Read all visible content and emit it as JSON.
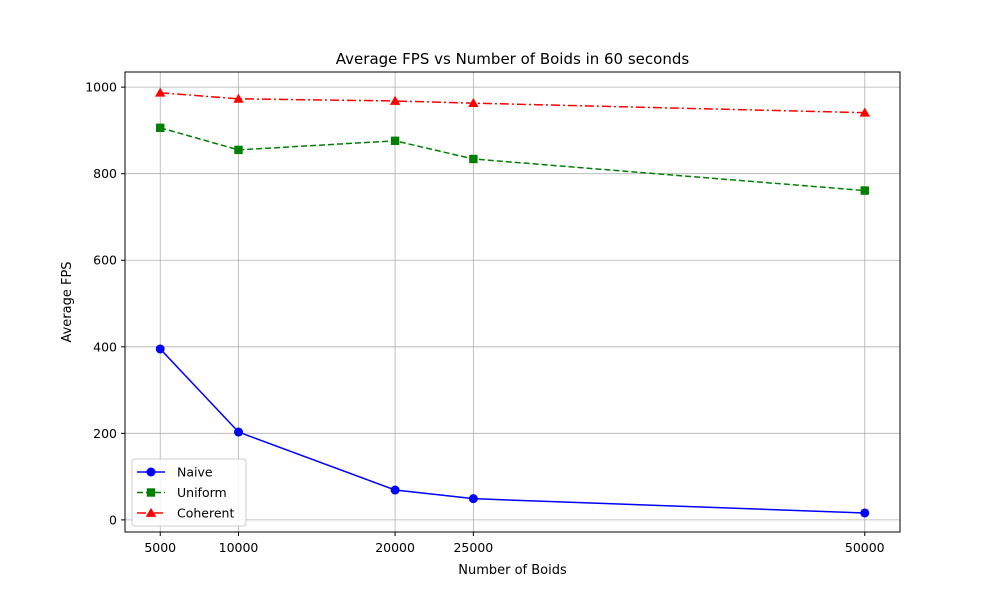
{
  "chart_data": {
    "type": "line",
    "title": "Average FPS vs Number of Boids in 60 seconds",
    "xlabel": "Number of Boids",
    "ylabel": "Average FPS",
    "x": [
      5000,
      10000,
      20000,
      25000,
      50000
    ],
    "xticks": [
      "5000",
      "10000",
      "20000",
      "25000",
      "50000"
    ],
    "yticks": [
      0,
      200,
      400,
      600,
      800,
      1000
    ],
    "xlim": [
      2750,
      52250
    ],
    "ylim": [
      -28,
      1035
    ],
    "grid": true,
    "legend_position": "lower-left",
    "series": [
      {
        "name": "Naive",
        "color": "#0000ff",
        "marker": "circle",
        "linestyle": "solid",
        "values": [
          395,
          203,
          69,
          49,
          16
        ]
      },
      {
        "name": "Uniform",
        "color": "#008000",
        "marker": "square",
        "linestyle": "dashed",
        "values": [
          906,
          855,
          876,
          834,
          761
        ]
      },
      {
        "name": "Coherent",
        "color": "#ff0000",
        "marker": "triangle",
        "linestyle": "dashdot",
        "values": [
          987,
          973,
          968,
          963,
          941
        ]
      }
    ]
  }
}
